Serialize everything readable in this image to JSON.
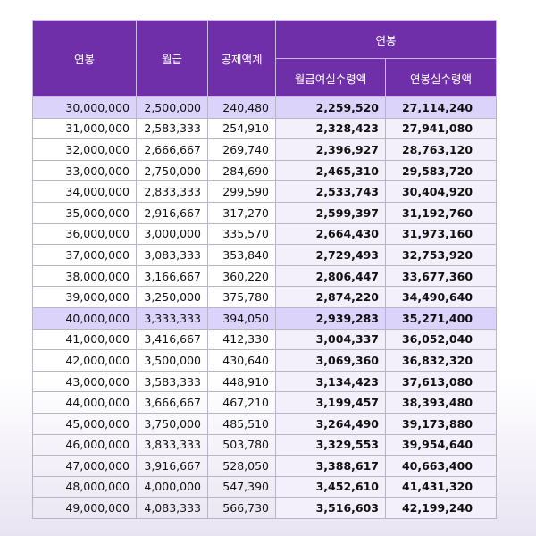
{
  "table": {
    "headers": {
      "salary": "연봉",
      "monthly": "월급",
      "deduction": "공제액계",
      "group": "연봉",
      "monthly_net": "월급여실수령액",
      "annual_net": "연봉실수령액"
    },
    "highlight_rows": [
      0,
      10
    ],
    "rows": [
      [
        "30,000,000",
        "2,500,000",
        "240,480",
        "2,259,520",
        "27,114,240"
      ],
      [
        "31,000,000",
        "2,583,333",
        "254,910",
        "2,328,423",
        "27,941,080"
      ],
      [
        "32,000,000",
        "2,666,667",
        "269,740",
        "2,396,927",
        "28,763,120"
      ],
      [
        "33,000,000",
        "2,750,000",
        "284,690",
        "2,465,310",
        "29,583,720"
      ],
      [
        "34,000,000",
        "2,833,333",
        "299,590",
        "2,533,743",
        "30,404,920"
      ],
      [
        "35,000,000",
        "2,916,667",
        "317,270",
        "2,599,397",
        "31,192,760"
      ],
      [
        "36,000,000",
        "3,000,000",
        "335,570",
        "2,664,430",
        "31,973,160"
      ],
      [
        "37,000,000",
        "3,083,333",
        "353,840",
        "2,729,493",
        "32,753,920"
      ],
      [
        "38,000,000",
        "3,166,667",
        "360,220",
        "2,806,447",
        "33,677,360"
      ],
      [
        "39,000,000",
        "3,250,000",
        "375,780",
        "2,874,220",
        "34,490,640"
      ],
      [
        "40,000,000",
        "3,333,333",
        "394,050",
        "2,939,283",
        "35,271,400"
      ],
      [
        "41,000,000",
        "3,416,667",
        "412,330",
        "3,004,337",
        "36,052,040"
      ],
      [
        "42,000,000",
        "3,500,000",
        "430,640",
        "3,069,360",
        "36,832,320"
      ],
      [
        "43,000,000",
        "3,583,333",
        "448,910",
        "3,134,423",
        "37,613,080"
      ],
      [
        "44,000,000",
        "3,666,667",
        "467,210",
        "3,199,457",
        "38,393,480"
      ],
      [
        "45,000,000",
        "3,750,000",
        "485,510",
        "3,264,490",
        "39,173,880"
      ],
      [
        "46,000,000",
        "3,833,333",
        "503,780",
        "3,329,553",
        "39,954,640"
      ],
      [
        "47,000,000",
        "3,916,667",
        "528,050",
        "3,388,617",
        "40,663,400"
      ],
      [
        "48,000,000",
        "4,000,000",
        "547,390",
        "3,452,610",
        "41,431,320"
      ],
      [
        "49,000,000",
        "4,083,333",
        "566,730",
        "3,516,603",
        "42,199,240"
      ]
    ]
  }
}
